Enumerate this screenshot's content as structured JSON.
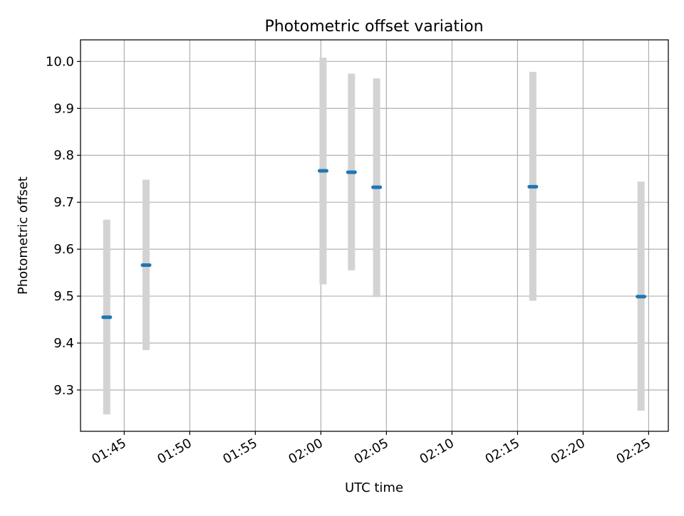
{
  "chart_data": {
    "type": "scatter",
    "title": "Photometric offset variation",
    "xlabel": "UTC time",
    "ylabel": "Photometric offset",
    "x_axis_type": "time",
    "xlim": [
      "01:41:40",
      "02:26:30"
    ],
    "ylim": [
      9.212,
      10.046
    ],
    "x_ticks": [
      "01:45",
      "01:50",
      "01:55",
      "02:00",
      "02:05",
      "02:10",
      "02:15",
      "02:20",
      "02:25"
    ],
    "y_ticks": [
      9.3,
      9.4,
      9.5,
      9.6,
      9.7,
      9.8,
      9.9,
      10.0
    ],
    "y_tick_labels": [
      "9.3",
      "9.4",
      "9.5",
      "9.6",
      "9.7",
      "9.8",
      "9.9",
      "10.0"
    ],
    "grid": true,
    "series": [
      {
        "x": [
          "01:43:40",
          "01:46:40",
          "02:00:10",
          "02:02:20",
          "02:04:15",
          "02:16:10",
          "02:24:25"
        ],
        "y": [
          9.455,
          9.566,
          9.767,
          9.764,
          9.732,
          9.733,
          9.499
        ],
        "err_low": [
          9.248,
          9.385,
          9.525,
          9.555,
          9.498,
          9.49,
          9.256
        ],
        "err_high": [
          9.663,
          9.748,
          10.008,
          9.974,
          9.964,
          9.978,
          9.744
        ]
      }
    ],
    "colors": {
      "marker": "#1f77b4",
      "errorbar": "#d3d3d3",
      "grid": "#b0b0b0"
    }
  }
}
